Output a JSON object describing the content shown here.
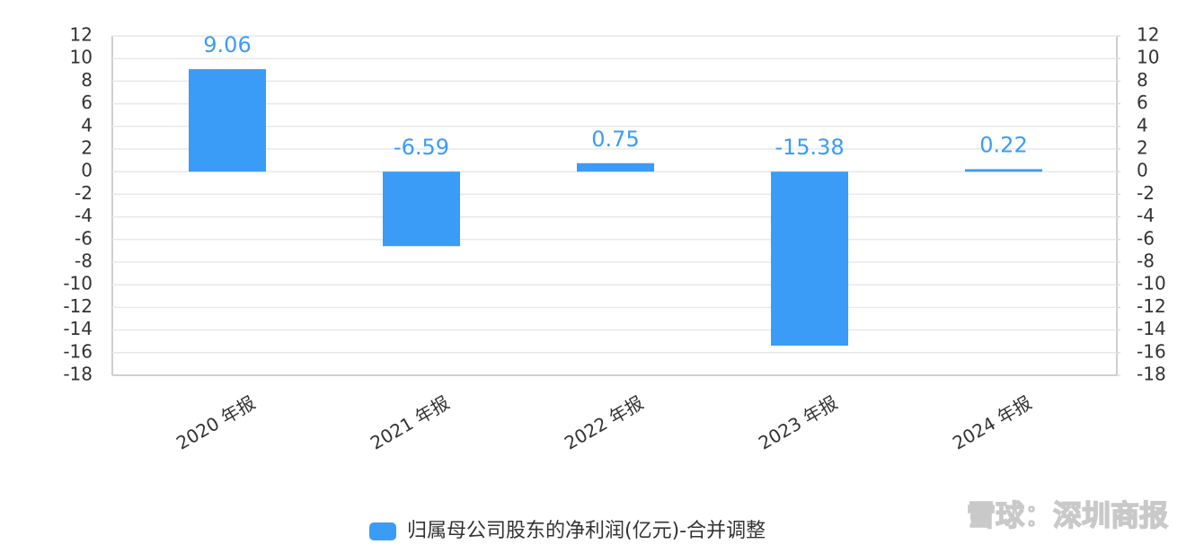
{
  "chart_data": {
    "type": "bar",
    "categories": [
      "2020 年报",
      "2021 年报",
      "2022 年报",
      "2023 年报",
      "2024 年报"
    ],
    "series": [
      {
        "name": "归属母公司股东的净利润(亿元)-合并调整",
        "color": "#3a9cf7",
        "values": [
          9.06,
          -6.59,
          0.75,
          -15.38,
          0.22
        ]
      }
    ],
    "ylim": [
      -18,
      12
    ],
    "yticks": [
      -18,
      -16,
      -14,
      -12,
      -10,
      -8,
      -6,
      -4,
      -2,
      0,
      2,
      4,
      6,
      8,
      10,
      12
    ],
    "y2lim": [
      -18,
      12
    ],
    "y2ticks": [
      -18,
      -16,
      -14,
      -12,
      -10,
      -8,
      -6,
      -4,
      -2,
      0,
      2,
      4,
      6,
      8,
      10,
      12
    ],
    "grid": true,
    "legend": "bottom",
    "watermark": "雪球：深圳商报"
  }
}
